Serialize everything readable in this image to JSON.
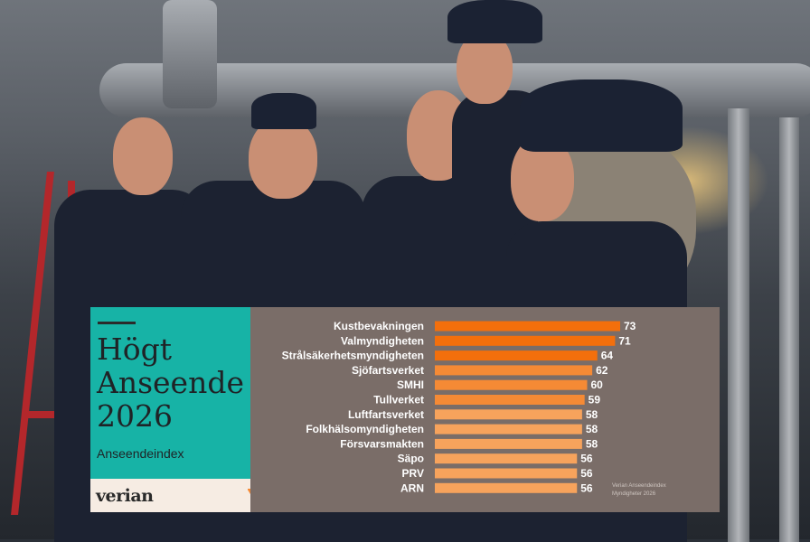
{
  "panel": {
    "title_lines": [
      "Högt",
      "Anseende",
      "2026"
    ],
    "subtitle": "Anseendeindex",
    "logo": "verian",
    "source_note_lines": [
      "Verian Anseendeindex",
      "Myndigheter 2026"
    ]
  },
  "colors": {
    "teal": "#17b3a6",
    "panel_bg": "#7a6d68",
    "logo_bg": "#f6ece3",
    "bar_dark": "#f36f0c",
    "bar_mid": "#f58a35",
    "bar_light": "#f7a35c",
    "logo_mark": "#f58a35"
  },
  "chart_data": {
    "type": "bar",
    "orientation": "horizontal",
    "categories": [
      "Kustbevakningen",
      "Valmyndigheten",
      "Strålsäkerhetsmyndigheten",
      "Sjöfartsverket",
      "SMHI",
      "Tullverket",
      "Luftfartsverket",
      "Folkhälsomyndigheten",
      "Försvarsmakten",
      "Säpo",
      "PRV",
      "ARN"
    ],
    "values": [
      73,
      71,
      64,
      62,
      60,
      59,
      58,
      58,
      58,
      56,
      56,
      56
    ],
    "data_labels": [
      "73",
      "71",
      "64",
      "62",
      "60",
      "59",
      "58",
      "58",
      "58",
      "56",
      "56",
      "56"
    ],
    "title": "",
    "xlabel": "",
    "ylabel": "",
    "xlim": [
      0,
      75
    ],
    "grid": false,
    "legend": "none"
  }
}
